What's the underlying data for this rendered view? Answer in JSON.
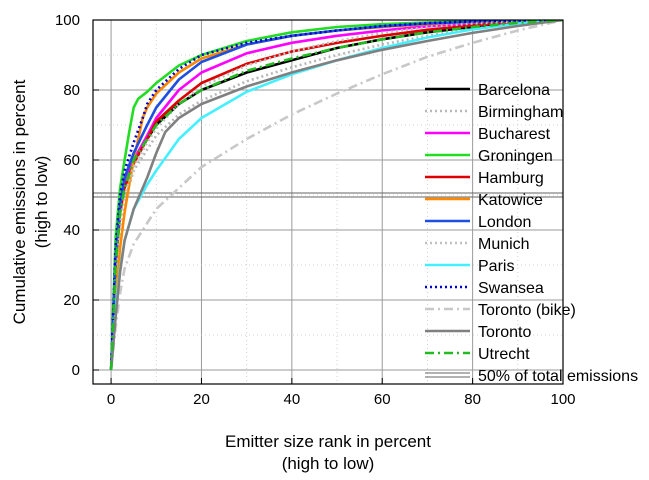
{
  "chart_data": {
    "type": "line",
    "title": "",
    "xlabel_lines": [
      "Emitter size rank in percent",
      "(high to low)"
    ],
    "ylabel_lines": [
      "Cumulative emissions in percent",
      "(high to low)"
    ],
    "xlim": [
      -4,
      100
    ],
    "ylim": [
      -4,
      100
    ],
    "x_ticks": [
      0,
      20,
      40,
      60,
      80,
      100
    ],
    "x_tick_labels": [
      "0",
      "20",
      "40",
      "60",
      "80",
      "100"
    ],
    "y_ticks": [
      0,
      20,
      40,
      60,
      80,
      100
    ],
    "y_tick_labels": [
      "0",
      "20",
      "40",
      "60",
      "80",
      "100"
    ],
    "grid": true,
    "legend_position": "right",
    "series": [
      {
        "name": "Barcelona",
        "color": "#000000",
        "dash": "solid",
        "x": [
          0,
          1,
          2,
          3,
          5,
          8,
          10,
          15,
          20,
          30,
          40,
          50,
          60,
          70,
          80,
          90,
          100
        ],
        "y": [
          0,
          30,
          45,
          53,
          60,
          66,
          70,
          76,
          80,
          85,
          88.5,
          92,
          94.5,
          96.5,
          98,
          99.3,
          100
        ]
      },
      {
        "name": "Birmingham",
        "color": "#b8b8b8",
        "dash": "dot",
        "x": [
          0,
          1,
          2,
          3,
          5,
          8,
          10,
          15,
          20,
          30,
          40,
          50,
          60,
          70,
          80,
          90,
          100
        ],
        "y": [
          0,
          25,
          40,
          48,
          57,
          63,
          67,
          73,
          77,
          82.5,
          86.5,
          90,
          93,
          95.5,
          97.5,
          99,
          100
        ]
      },
      {
        "name": "Bucharest",
        "color": "#ff00ff",
        "dash": "solid",
        "x": [
          0,
          1,
          2,
          3,
          5,
          8,
          10,
          15,
          20,
          30,
          40,
          50,
          60,
          70,
          80,
          90,
          100
        ],
        "y": [
          0,
          32,
          46,
          53,
          60,
          67,
          72,
          80,
          85,
          90.5,
          93.5,
          95.5,
          97,
          98.2,
          99,
          99.6,
          100
        ]
      },
      {
        "name": "Groningen",
        "color": "#22dd22",
        "dash": "solid",
        "x": [
          0,
          1,
          2,
          3,
          4,
          5,
          6,
          8,
          10,
          15,
          20,
          30,
          40,
          50,
          60,
          70,
          80,
          90,
          100
        ],
        "y": [
          0,
          38,
          52,
          60,
          68,
          75,
          77.5,
          79.5,
          82,
          87,
          90,
          94,
          96.5,
          98,
          98.8,
          99.3,
          99.7,
          99.9,
          100
        ]
      },
      {
        "name": "Hamburg",
        "color": "#dd0000",
        "dash": "solid",
        "x": [
          0,
          1,
          2,
          3,
          5,
          8,
          10,
          15,
          20,
          30,
          40,
          50,
          60,
          70,
          80,
          90,
          100
        ],
        "y": [
          0,
          30,
          45,
          52,
          59,
          66,
          71,
          77,
          82,
          87.5,
          91,
          93.5,
          95.5,
          97.2,
          98.5,
          99.4,
          100
        ]
      },
      {
        "name": "Katowice",
        "color": "#ff8800",
        "dash": "solid",
        "x": [
          0,
          1,
          2,
          3,
          4,
          5,
          6,
          7,
          8,
          10,
          15,
          20,
          30,
          40,
          50,
          60,
          70,
          80,
          90,
          100
        ],
        "y": [
          0,
          20,
          35,
          45,
          53,
          60,
          66,
          72,
          75,
          79,
          85,
          89,
          93,
          95.5,
          97,
          98,
          98.8,
          99.4,
          99.8,
          100
        ]
      },
      {
        "name": "London",
        "color": "#1e4fe0",
        "dash": "solid",
        "x": [
          0,
          1,
          2,
          3,
          5,
          8,
          10,
          15,
          20,
          30,
          40,
          50,
          60,
          70,
          80,
          90,
          100
        ],
        "y": [
          0,
          32,
          47,
          55,
          62,
          70,
          75,
          83,
          88,
          93,
          95.5,
          97,
          98.2,
          99,
          99.5,
          99.8,
          100
        ]
      },
      {
        "name": "Munich",
        "color": "#c0c0c0",
        "dash": "dot",
        "x": [
          0,
          1,
          2,
          3,
          5,
          8,
          10,
          15,
          20,
          30,
          40,
          50,
          60,
          70,
          80,
          90,
          100
        ],
        "y": [
          0,
          28,
          42,
          50,
          58,
          65,
          69,
          76,
          81,
          87,
          91,
          94,
          96.3,
          98,
          99,
          99.6,
          100
        ]
      },
      {
        "name": "Paris",
        "color": "#44f0ff",
        "dash": "solid",
        "x": [
          0,
          1,
          2,
          3,
          5,
          8,
          10,
          15,
          20,
          30,
          40,
          50,
          60,
          70,
          80,
          90,
          100
        ],
        "y": [
          0,
          17,
          29,
          37,
          46,
          53,
          57,
          66,
          72,
          79.5,
          84.5,
          88.5,
          92,
          95,
          97.3,
          99,
          100
        ]
      },
      {
        "name": "Swansea",
        "color": "#0000cc",
        "dash": "dot",
        "x": [
          0,
          1,
          2,
          3,
          5,
          7,
          8,
          10,
          15,
          20,
          30,
          40,
          50,
          60,
          70,
          80,
          90,
          100
        ],
        "y": [
          0,
          35,
          50,
          57,
          65,
          72,
          76,
          80,
          86,
          90,
          93.5,
          95.5,
          97,
          98.3,
          99.1,
          99.6,
          99.9,
          100
        ]
      },
      {
        "name": "Toronto (bike)",
        "color": "#c8c8c8",
        "dash": "dashdot",
        "x": [
          0,
          1,
          2,
          3,
          5,
          8,
          10,
          15,
          20,
          30,
          40,
          50,
          60,
          70,
          80,
          90,
          100
        ],
        "y": [
          0,
          12,
          22,
          29,
          36,
          42,
          46,
          52,
          58,
          66,
          73,
          79,
          84.5,
          89.5,
          93.5,
          97,
          100
        ]
      },
      {
        "name": "Toronto",
        "color": "#808080",
        "dash": "solid",
        "x": [
          0,
          1,
          2,
          3,
          5,
          8,
          10,
          12,
          15,
          20,
          30,
          40,
          50,
          60,
          70,
          80,
          90,
          100
        ],
        "y": [
          0,
          15,
          28,
          37,
          46,
          55,
          62,
          68,
          72,
          76,
          81,
          85,
          88.5,
          91.5,
          94,
          96.3,
          98.3,
          100
        ]
      },
      {
        "name": "Utrecht",
        "color": "#22bb22",
        "dash": "dashdot",
        "x": [
          0,
          1,
          2,
          3,
          5,
          8,
          10,
          15,
          20,
          30,
          40,
          50,
          60,
          70,
          80,
          90,
          100
        ],
        "y": [
          0,
          30,
          45,
          52,
          60,
          66,
          70,
          76,
          80,
          85.5,
          89,
          92,
          94.5,
          96.5,
          98,
          99.2,
          100
        ]
      }
    ],
    "reference_line": {
      "name": "50% of total emissions",
      "y": 50,
      "color": "#666666",
      "style": "double"
    }
  }
}
